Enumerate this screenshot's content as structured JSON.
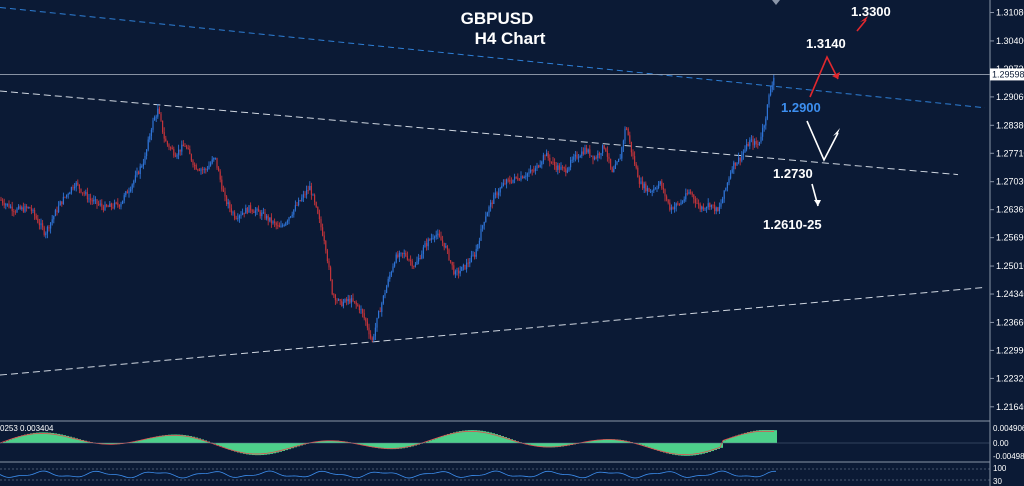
{
  "chart_data": {
    "type": "candlestick",
    "title": "GBPUSD",
    "subtitle": "H4 Chart",
    "y_ticks": [
      "1.31080",
      "1.30400",
      "1.29060",
      "1.28380",
      "1.27710",
      "1.27030",
      "1.26360",
      "1.25690",
      "1.25010",
      "1.24340",
      "1.23660",
      "1.22990",
      "1.22320",
      "1.21640"
    ],
    "ylim": [
      1.213,
      1.3138
    ],
    "grid": false,
    "price_markers": [
      {
        "label": "1.29730",
        "value": 1.2973
      },
      {
        "label": "1.29598",
        "value": 1.29598,
        "highlight": true
      }
    ],
    "price_path": [
      [
        0,
        1.266
      ],
      [
        15,
        1.2635
      ],
      [
        30,
        1.264
      ],
      [
        45,
        1.258
      ],
      [
        60,
        1.265
      ],
      [
        75,
        1.27
      ],
      [
        90,
        1.266
      ],
      [
        105,
        1.264
      ],
      [
        120,
        1.265
      ],
      [
        135,
        1.271
      ],
      [
        145,
        1.276
      ],
      [
        152,
        1.284
      ],
      [
        158,
        1.2875
      ],
      [
        165,
        1.28
      ],
      [
        175,
        1.277
      ],
      [
        185,
        1.279
      ],
      [
        195,
        1.274
      ],
      [
        205,
        1.273
      ],
      [
        215,
        1.276
      ],
      [
        225,
        1.266
      ],
      [
        235,
        1.262
      ],
      [
        250,
        1.264
      ],
      [
        265,
        1.262
      ],
      [
        280,
        1.259
      ],
      [
        295,
        1.264
      ],
      [
        310,
        1.269
      ],
      [
        318,
        1.262
      ],
      [
        325,
        1.256
      ],
      [
        332,
        1.244
      ],
      [
        340,
        1.241
      ],
      [
        350,
        1.242
      ],
      [
        360,
        1.24
      ],
      [
        367,
        1.236
      ],
      [
        372,
        1.232
      ],
      [
        378,
        1.238
      ],
      [
        385,
        1.244
      ],
      [
        395,
        1.252
      ],
      [
        405,
        1.253
      ],
      [
        415,
        1.25
      ],
      [
        425,
        1.255
      ],
      [
        435,
        1.258
      ],
      [
        445,
        1.255
      ],
      [
        455,
        1.248
      ],
      [
        465,
        1.25
      ],
      [
        475,
        1.253
      ],
      [
        485,
        1.262
      ],
      [
        495,
        1.267
      ],
      [
        505,
        1.27
      ],
      [
        515,
        1.271
      ],
      [
        525,
        1.272
      ],
      [
        535,
        1.273
      ],
      [
        545,
        1.277
      ],
      [
        555,
        1.274
      ],
      [
        565,
        1.273
      ],
      [
        575,
        1.276
      ],
      [
        585,
        1.278
      ],
      [
        595,
        1.276
      ],
      [
        605,
        1.279
      ],
      [
        612,
        1.272
      ],
      [
        620,
        1.276
      ],
      [
        626,
        1.284
      ],
      [
        632,
        1.277
      ],
      [
        640,
        1.27
      ],
      [
        650,
        1.268
      ],
      [
        660,
        1.27
      ],
      [
        670,
        1.264
      ],
      [
        680,
        1.265
      ],
      [
        690,
        1.268
      ],
      [
        700,
        1.264
      ],
      [
        710,
        1.265
      ],
      [
        718,
        1.263
      ],
      [
        725,
        1.268
      ],
      [
        732,
        1.274
      ],
      [
        740,
        1.276
      ],
      [
        750,
        1.28
      ],
      [
        758,
        1.279
      ],
      [
        765,
        1.285
      ],
      [
        770,
        1.292
      ],
      [
        775,
        1.2965
      ]
    ],
    "trendlines": [
      {
        "color": "#2e7fd6",
        "dash": "6,4",
        "points": [
          [
            0,
            1.312
          ],
          [
            985,
            1.288
          ]
        ]
      },
      {
        "color": "#cfd6e0",
        "dash": "7,4",
        "points": [
          [
            0,
            1.292
          ],
          [
            958,
            1.272
          ]
        ]
      },
      {
        "color": "#cfd6e0",
        "dash": "7,4",
        "points": [
          [
            0,
            1.224
          ],
          [
            985,
            1.245
          ]
        ]
      }
    ],
    "annotations": [
      {
        "text": "1.3300",
        "color": "#ffffff"
      },
      {
        "text": "1.3140",
        "color": "#ffffff"
      },
      {
        "text": "1.2900",
        "color": "#3d8ff0"
      },
      {
        "text": "1.2730",
        "color": "#ffffff"
      },
      {
        "text": "1.2610-25",
        "color": "#ffffff"
      }
    ],
    "indicator1": {
      "label": "0253 0.003404",
      "ticks": [
        "0.004906",
        "0.00",
        "-0.004987"
      ],
      "fill_color": "#4dd08a"
    },
    "indicator2": {
      "ticks": [
        "100",
        "30"
      ]
    }
  }
}
